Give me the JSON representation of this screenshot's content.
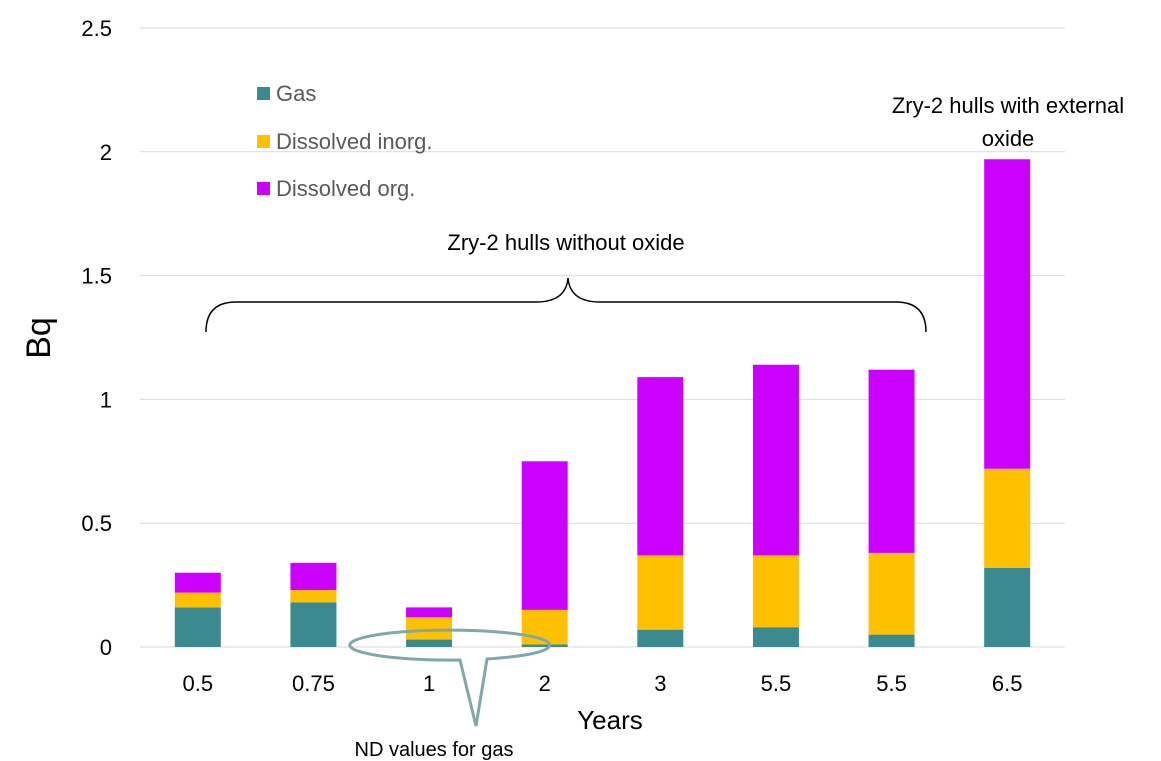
{
  "chart_data": {
    "type": "bar",
    "stacked": true,
    "categories": [
      "0.5",
      "0.75",
      "1",
      "2",
      "3",
      "5.5",
      "5.5",
      "6.5"
    ],
    "series": [
      {
        "name": "Gas",
        "color": "#3a8a8f",
        "values": [
          0.16,
          0.18,
          0.03,
          0.01,
          0.07,
          0.08,
          0.05,
          0.32
        ]
      },
      {
        "name": "Dissolved inorg.",
        "color": "#ffc000",
        "values": [
          0.06,
          0.05,
          0.09,
          0.14,
          0.3,
          0.29,
          0.33,
          0.4
        ]
      },
      {
        "name": "Dissolved org.",
        "color": "#cc00ff",
        "values": [
          0.08,
          0.11,
          0.04,
          0.6,
          0.72,
          0.77,
          0.74,
          1.25
        ]
      }
    ],
    "xlabel": "Years",
    "ylabel": "Bq",
    "ylim": [
      0,
      2.5
    ],
    "yticks": [
      "0",
      "0.5",
      "1",
      "1.5",
      "2",
      "2.5"
    ],
    "grid": true,
    "legend_position": "top-left",
    "annotations": {
      "bracket_label": "Zry-2 hulls without oxide",
      "top_label_line1": "Zry-2 hulls with external",
      "top_label_line2": "oxide",
      "callout_label": "ND values  for gas"
    }
  }
}
